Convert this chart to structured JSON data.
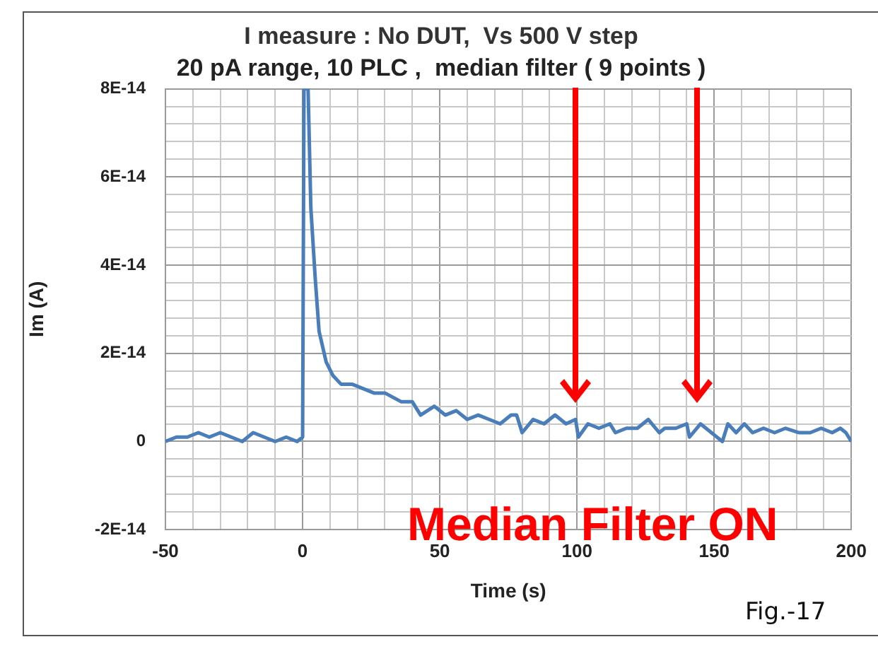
{
  "chart_data": {
    "type": "line",
    "title": "I measure : No DUT,  Vs 500 V step",
    "subtitle": "20 pA range, 10 PLC ,  median filter ( 9 points )",
    "xlabel": "Time (s)",
    "ylabel": "Im (A)",
    "annotations": [
      "Median Filter ON",
      "Fig.-17"
    ],
    "x": [
      -50,
      -46,
      -42,
      -38,
      -34,
      -30,
      -26,
      -22,
      -18,
      -14,
      -10,
      -6,
      -2,
      0,
      0.5,
      2,
      3,
      4.6,
      6,
      8.6,
      11,
      14,
      18,
      22,
      26,
      30,
      36,
      40,
      43,
      48,
      52,
      56,
      60,
      64,
      68,
      72,
      76,
      78,
      80,
      84,
      88,
      92,
      96,
      99.5,
      100.5,
      104,
      108,
      112,
      114,
      118,
      122,
      126,
      130,
      132,
      136,
      140,
      141,
      145,
      149,
      153,
      155,
      158,
      161,
      164,
      168,
      172,
      176,
      181,
      185,
      189,
      193,
      196,
      198,
      200
    ],
    "series": [
      {
        "color": "#4a7ebb",
        "values": [
          0,
          1e-15,
          1e-15,
          2e-15,
          1e-15,
          2e-15,
          1e-15,
          0,
          2e-15,
          1e-15,
          0,
          1e-15,
          0,
          1e-15,
          8e-14,
          8e-14,
          5.3e-14,
          3.7e-14,
          2.5e-14,
          1.8e-14,
          1.5e-14,
          1.3e-14,
          1.3e-14,
          1.2e-14,
          1.1e-14,
          1.1e-14,
          9e-15,
          9e-15,
          6e-15,
          8e-15,
          6e-15,
          7e-15,
          5e-15,
          6e-15,
          5e-15,
          4e-15,
          6e-15,
          6e-15,
          2e-15,
          5e-15,
          4e-15,
          6e-15,
          4e-15,
          5e-15,
          1e-15,
          4e-15,
          3e-15,
          4e-15,
          2e-15,
          3e-15,
          3e-15,
          5e-15,
          2e-15,
          3e-15,
          3e-15,
          4e-15,
          1e-15,
          4e-15,
          2e-15,
          0,
          4e-15,
          2e-15,
          4e-15,
          2e-15,
          3e-15,
          2e-15,
          3e-15,
          2e-15,
          2e-15,
          3e-15,
          2e-15,
          3e-15,
          2e-15,
          0
        ]
      }
    ],
    "xlim": [
      -50,
      200
    ],
    "xticks": [
      -50,
      {
        "value": -40,
        "label": null
      },
      {
        "value": -30,
        "label": null
      },
      {
        "value": -20,
        "label": null
      },
      {
        "value": -10,
        "label": null
      },
      0,
      {
        "value": 10,
        "label": null
      },
      {
        "value": 20,
        "label": null
      },
      {
        "value": 30,
        "label": null
      },
      {
        "value": 40,
        "label": null
      },
      50,
      {
        "value": 60,
        "label": null
      },
      {
        "value": 70,
        "label": null
      },
      {
        "value": 80,
        "label": null
      },
      {
        "value": 90,
        "label": null
      },
      100,
      {
        "value": 110,
        "label": null
      },
      {
        "value": 120,
        "label": null
      },
      {
        "value": 130,
        "label": null
      },
      {
        "value": 140,
        "label": null
      },
      150,
      {
        "value": 160,
        "label": null
      },
      {
        "value": 170,
        "label": null
      },
      {
        "value": 180,
        "label": null
      },
      {
        "value": 190,
        "label": null
      },
      200
    ],
    "ylim": [
      -2e-14,
      8e-14
    ],
    "yticks": [
      {
        "value": -2e-14,
        "label": "-2E-14"
      },
      {
        "value": -1.6e-14,
        "label": null
      },
      {
        "value": -1.2e-14,
        "label": null
      },
      {
        "value": -8e-15,
        "label": null
      },
      {
        "value": -4e-15,
        "label": null
      },
      0,
      {
        "value": 4e-15,
        "label": null
      },
      {
        "value": 8e-15,
        "label": null
      },
      {
        "value": 1.2e-14,
        "label": null
      },
      {
        "value": 1.6e-14,
        "label": null
      },
      {
        "value": 2e-14,
        "label": "2E-14"
      },
      {
        "value": 2.4e-14,
        "label": null
      },
      {
        "value": 2.8e-14,
        "label": null
      },
      {
        "value": 3.2e-14,
        "label": null
      },
      {
        "value": 3.6e-14,
        "label": null
      },
      {
        "value": 4e-14,
        "label": "4E-14"
      },
      {
        "value": 4.4e-14,
        "label": null
      },
      {
        "value": 4.8e-14,
        "label": null
      },
      {
        "value": 5.2e-14,
        "label": null
      },
      {
        "value": 5.6e-14,
        "label": null
      },
      {
        "value": 6e-14,
        "label": "6E-14"
      },
      {
        "value": 6.4e-14,
        "label": null
      },
      {
        "value": 6.8e-14,
        "label": null
      },
      {
        "value": 7.2e-14,
        "label": null
      },
      {
        "value": 7.6e-14,
        "label": null
      },
      {
        "value": 8e-14,
        "label": "8E-14"
      }
    ],
    "grid": true,
    "legend": false,
    "marker": "none",
    "line_style": "solid"
  }
}
